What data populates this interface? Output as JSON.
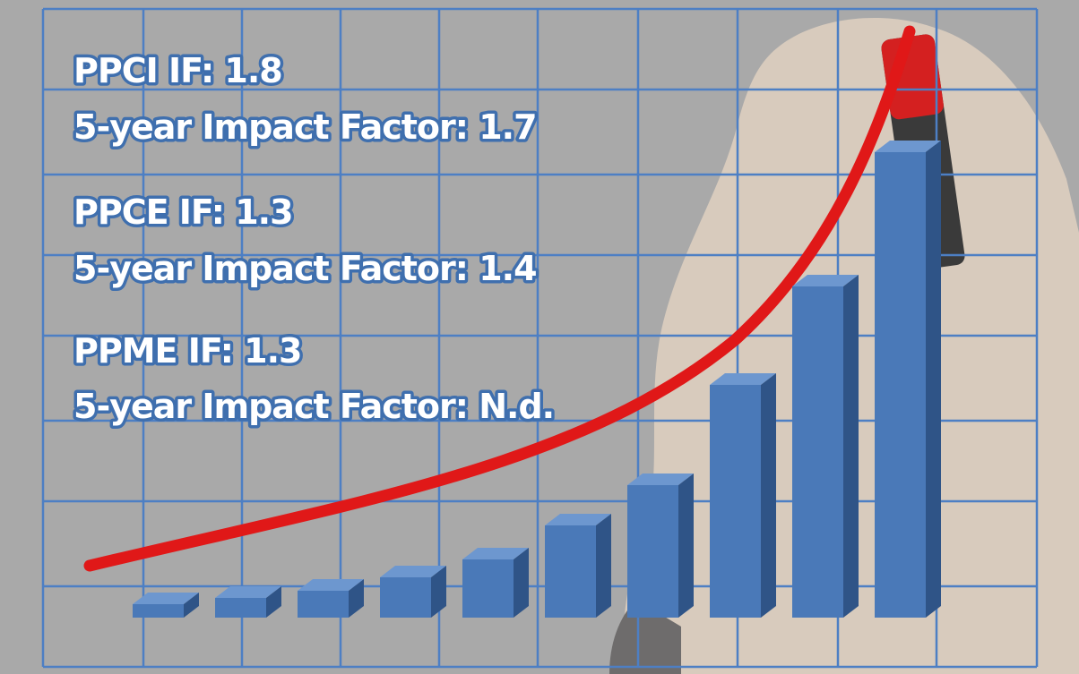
{
  "entries": [
    {
      "impact_factor": "PPCI IF: 1.8",
      "five_year": "5-year Impact Factor: 1.7"
    },
    {
      "impact_factor": "PPCE IF: 1.3",
      "five_year": "5-year Impact Factor: 1.4"
    },
    {
      "impact_factor": "PPME IF: 1.3",
      "five_year": "5-year Impact Factor: N.d."
    }
  ]
}
